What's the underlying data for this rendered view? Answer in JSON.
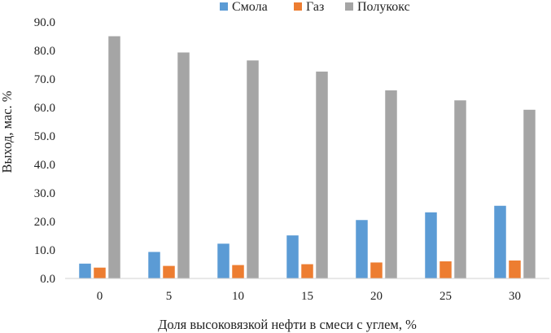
{
  "chart_data": {
    "type": "bar",
    "title": "",
    "xlabel": "Доля высоковязкой нефти в смеси с углем, %",
    "ylabel": "Выход, мас. %",
    "ylim": [
      0,
      90
    ],
    "ytick_step": 10,
    "ytick_labels": [
      "0.0",
      "10.0",
      "20.0",
      "30.0",
      "40.0",
      "50.0",
      "60.0",
      "70.0",
      "80.0",
      "90.0"
    ],
    "grid": false,
    "legend_position": "top",
    "categories": [
      "0",
      "5",
      "10",
      "15",
      "20",
      "25",
      "30"
    ],
    "series": [
      {
        "name": "Смола",
        "color": "#5b9bd5",
        "values": [
          5.2,
          9.3,
          12.2,
          15.1,
          20.5,
          23.2,
          25.5
        ]
      },
      {
        "name": "Газ",
        "color": "#ed7d31",
        "values": [
          3.8,
          4.4,
          4.7,
          5.0,
          5.6,
          6.0,
          6.3
        ]
      },
      {
        "name": "Полукокс",
        "color": "#a5a5a5",
        "values": [
          85.0,
          79.3,
          76.5,
          72.6,
          66.0,
          62.5,
          59.2
        ]
      }
    ]
  }
}
